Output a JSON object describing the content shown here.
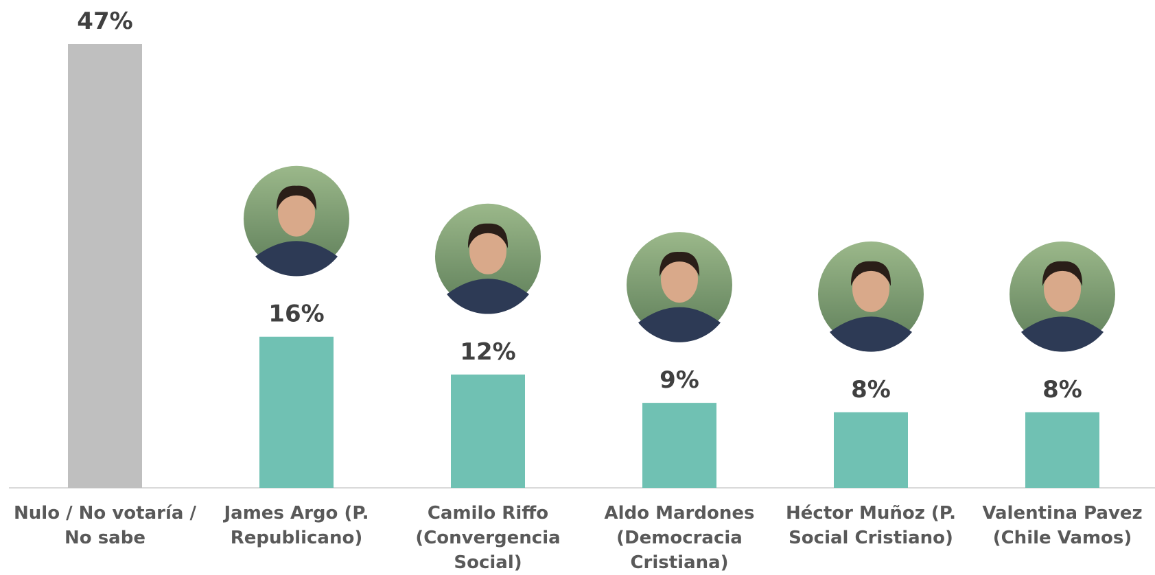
{
  "chart_data": {
    "type": "bar",
    "categories": [
      "Nulo / No votaría / No sabe",
      "James Argo (P. Republicano)",
      "Camilo Riffo (Convergencia Social)",
      "Aldo Mardones (Democracia Cristiana)",
      "Héctor Muñoz (P. Social Cristiano)",
      "Valentina Pavez (Chile Vamos)"
    ],
    "values": [
      47,
      16,
      12,
      9,
      8,
      8
    ],
    "value_labels": [
      "47%",
      "16%",
      "12%",
      "9%",
      "8%",
      "8%"
    ],
    "colors": [
      "#bfbfbf",
      "#70c1b3",
      "#70c1b3",
      "#70c1b3",
      "#70c1b3",
      "#70c1b3"
    ]
  }
}
